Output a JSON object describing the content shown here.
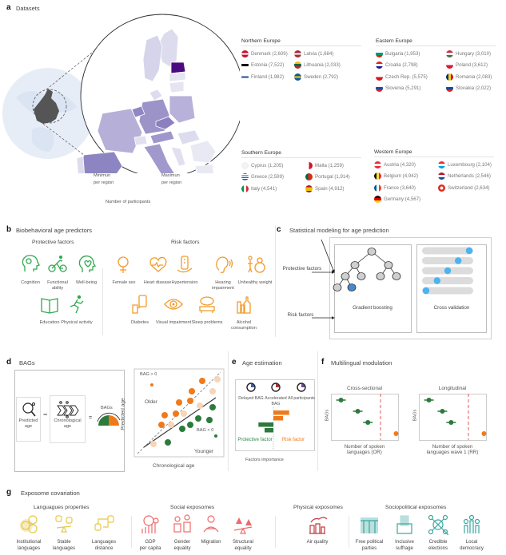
{
  "panel_a": {
    "letter": "a",
    "title": "Datasets",
    "legend": {
      "min_label_1": "Minimun",
      "min_label_2": "per region",
      "max_label_1": "Maximun",
      "max_label_2": "per region",
      "caption": "Number of participants",
      "color_min": "#f4f1fa",
      "color_max": "#4b0a7f"
    },
    "regions": [
      {
        "name": "Northern Europe",
        "countries": [
          {
            "label": "Denmark (2,609)",
            "flag": "denmark-flag-icon"
          },
          {
            "label": "Estonia (7,522)",
            "flag": "estonia-flag-icon"
          },
          {
            "label": "Finland (1,982)",
            "flag": "finland-flag-icon"
          },
          {
            "label": "Latvia (1,684)",
            "flag": "latvia-flag-icon"
          },
          {
            "label": "Lithuania (2,033)",
            "flag": "lithuania-flag-icon"
          },
          {
            "label": "Sweden (2,792)",
            "flag": "sweden-flag-icon"
          }
        ]
      },
      {
        "name": "Eastern Europe",
        "countries": [
          {
            "label": "Bulgaria (1,953)",
            "flag": "bulgaria-flag-icon"
          },
          {
            "label": "Croatia (2,798)",
            "flag": "croatia-flag-icon"
          },
          {
            "label": "Czech Rep. (5,575)",
            "flag": "czech-flag-icon"
          },
          {
            "label": "Slovenia (5,291)",
            "flag": "slovenia-flag-icon"
          },
          {
            "label": "Hungary (3,010)",
            "flag": "hungary-flag-icon"
          },
          {
            "label": "Poland (3,612)",
            "flag": "poland-flag-icon"
          },
          {
            "label": "Romania (2,083)",
            "flag": "romania-flag-icon"
          },
          {
            "label": "Slovakia (2,022)",
            "flag": "slovakia-flag-icon"
          }
        ]
      },
      {
        "name": "Southern Europe",
        "countries": [
          {
            "label": "Cyprus (1,205)",
            "flag": "cyprus-flag-icon"
          },
          {
            "label": "Greece (2,599)",
            "flag": "greece-flag-icon"
          },
          {
            "label": "Italy (4,541)",
            "flag": "italy-flag-icon"
          },
          {
            "label": "Malta (1,259)",
            "flag": "malta-flag-icon"
          },
          {
            "label": "Portugal (1,914)",
            "flag": "portugal-flag-icon"
          },
          {
            "label": "Spain (4,912)",
            "flag": "spain-flag-icon"
          }
        ]
      },
      {
        "name": "Western Europe",
        "countries": [
          {
            "label": "Austria (4,320)",
            "flag": "austria-flag-icon"
          },
          {
            "label": "Belgium (4,942)",
            "flag": "belgium-flag-icon"
          },
          {
            "label": "France (3,640)",
            "flag": "france-flag-icon"
          },
          {
            "label": "Germany (4,567)",
            "flag": "germany-flag-icon"
          },
          {
            "label": "Luxembourg (2,104)",
            "flag": "luxembourg-flag-icon"
          },
          {
            "label": "Netherlands (2,546)",
            "flag": "netherlands-flag-icon"
          },
          {
            "label": "Switzerland (2,634)",
            "flag": "switzerland-flag-icon"
          }
        ]
      }
    ]
  },
  "panel_b": {
    "letter": "b",
    "title": "Biobehavioral age predictors",
    "protective_heading": "Protective factors",
    "risk_heading": "Risk factors",
    "protective_color": "#2fa84f",
    "risk_color": "#f39a2b",
    "protective": [
      {
        "label": "Cognition",
        "icon": "brain-head-icon"
      },
      {
        "label": "Functional ability",
        "icon": "cyclist-icon"
      },
      {
        "label": "Well-being",
        "icon": "heart-head-icon"
      },
      {
        "label": "Education",
        "icon": "book-icon"
      },
      {
        "label": "Physical activity",
        "icon": "runner-icon"
      }
    ],
    "risk": [
      {
        "label": "Female sex",
        "icon": "female-symbol-icon"
      },
      {
        "label": "Heart disease",
        "icon": "heart-icon"
      },
      {
        "label": "Hypertension",
        "icon": "blood-pressure-icon"
      },
      {
        "label": "Hearing impairment",
        "icon": "ear-icon"
      },
      {
        "label": "Unhealthy weight",
        "icon": "body-weight-icon"
      },
      {
        "label": "Diabetes",
        "icon": "glucometer-icon"
      },
      {
        "label": "Visual impairment",
        "icon": "eye-icon"
      },
      {
        "label": "Sleep problems",
        "icon": "sleep-icon"
      },
      {
        "label": "Alcohol consumption",
        "icon": "bottles-icon"
      }
    ]
  },
  "panel_c": {
    "letter": "c",
    "title": "Statistical modeling for age prediction",
    "input_protective": "Protective factors",
    "input_risk": "Risk factors",
    "model_1": "Gradient boosting",
    "model_2": "Cross validation",
    "node_color": "#cfcfcf",
    "highlight_color": "#4a88c7",
    "cv_dot_color": "#4ab3f0",
    "cv_folds": [
      0.95,
      0.72,
      0.5,
      0.28,
      0.05
    ]
  },
  "panel_d": {
    "letter": "d",
    "title": "BAGs",
    "predicted_age": "Predicted age",
    "chronological_age": "Chronological age",
    "minus": "−",
    "equals": "=",
    "bags_label": "BAGs",
    "scatter": {
      "bag_pos": "BAG > 0",
      "bag_neg": "BAG < 0",
      "older": "Older",
      "younger": "Younger",
      "xlabel": "Chronological age",
      "ylabel": "Predicted age",
      "older_color": "#f07a1a",
      "younger_color": "#2c7a3c",
      "pale_color": "#f8d4b8"
    }
  },
  "panel_e": {
    "letter": "e",
    "title": "Age estimation",
    "clocks": [
      {
        "label": "Delayed BAG",
        "icon": "clock-blue-icon"
      },
      {
        "label": "Accelerated BAG",
        "icon": "clock-red-icon"
      },
      {
        "label": "All participants",
        "icon": "clock-mixed-icon"
      }
    ],
    "protective_label": "Protective factor",
    "risk_label": "Risk factor",
    "xlabel": "Factors importance",
    "risk_bars": [
      0.9,
      0.55
    ],
    "protective_bars": [
      0.85,
      0.5
    ]
  },
  "panel_f": {
    "letter": "f",
    "title": "Multilingual modulation",
    "plots": [
      {
        "title": "Cross-sectional",
        "ylabel": "BAGs",
        "xlabel_1": "Number of spoken",
        "xlabel_2": "languages (OR)",
        "points": [
          0.15,
          0.4,
          0.55,
          0.97
        ]
      },
      {
        "title": "Longitudinal",
        "ylabel": "BAGs",
        "xlabel_1": "Number of spoken",
        "xlabel_2": "languages wave 1 (RR)",
        "points": [
          0.15,
          0.35,
          0.48,
          0.97
        ]
      }
    ]
  },
  "panel_g": {
    "letter": "g",
    "title": "Exposome covariation",
    "groups": [
      {
        "heading": "Languagues properties",
        "color": "#e8c74a",
        "items": [
          {
            "label_1": "Institutional",
            "label_2": "languages",
            "icon": "speech-bubbles-icon"
          },
          {
            "label_1": "Stable",
            "label_2": "languages",
            "icon": "balance-languages-icon"
          },
          {
            "label_1": "Languages",
            "label_2": "distance",
            "icon": "language-distance-icon"
          }
        ]
      },
      {
        "heading": "Social exposomes",
        "color": "#ef6a6a",
        "items": [
          {
            "label_1": "GDP",
            "label_2": "per capita",
            "icon": "gdp-icon"
          },
          {
            "label_1": "Gender",
            "label_2": "equality",
            "icon": "gender-equality-icon"
          },
          {
            "label_1": "Migration",
            "label_2": "",
            "icon": "migration-icon"
          },
          {
            "label_1": "Structural",
            "label_2": "equality",
            "icon": "scale-icon"
          }
        ]
      },
      {
        "heading": "Physical exposomes",
        "color": "#c0393b",
        "items": [
          {
            "label_1": "Air quality",
            "label_2": "",
            "icon": "factory-icon"
          }
        ]
      },
      {
        "heading": "Sociopolitical exposomes",
        "color": "#3aa6a0",
        "items": [
          {
            "label_1": "Free political",
            "label_2": "parties",
            "icon": "parliament-icon"
          },
          {
            "label_1": "Inclusive",
            "label_2": "suffrage",
            "icon": "ballot-box-icon"
          },
          {
            "label_1": "Credible",
            "label_2": "elections",
            "icon": "network-icon"
          },
          {
            "label_1": "Local",
            "label_2": "democracy",
            "icon": "people-group-icon"
          }
        ]
      }
    ]
  }
}
